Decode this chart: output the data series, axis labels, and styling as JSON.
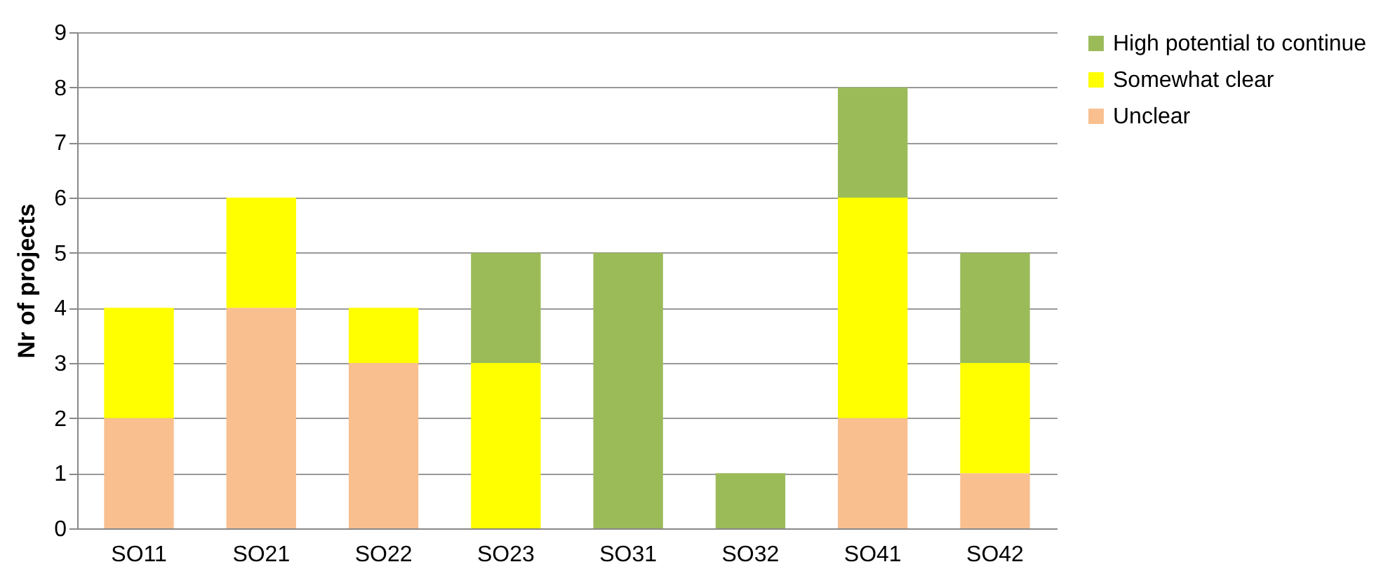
{
  "chart_data": {
    "type": "bar",
    "stacked": true,
    "ylabel": "Nr of projects",
    "categories": [
      "SO11",
      "SO21",
      "SO22",
      "SO23",
      "SO31",
      "SO32",
      "SO41",
      "SO42"
    ],
    "series": [
      {
        "name": "Unclear",
        "color": "#f9bf8f",
        "values": [
          2,
          4,
          3,
          0,
          0,
          0,
          2,
          1
        ]
      },
      {
        "name": "Somewhat clear",
        "color": "#ffff00",
        "values": [
          2,
          2,
          1,
          3,
          0,
          0,
          4,
          2
        ]
      },
      {
        "name": "High potential to continue",
        "color": "#9bbb59",
        "values": [
          0,
          0,
          0,
          2,
          5,
          1,
          2,
          2
        ]
      }
    ],
    "ylim": [
      0,
      9
    ],
    "yticks": [
      0,
      1,
      2,
      3,
      4,
      5,
      6,
      7,
      8,
      9
    ],
    "grid": true,
    "legend": "right"
  }
}
